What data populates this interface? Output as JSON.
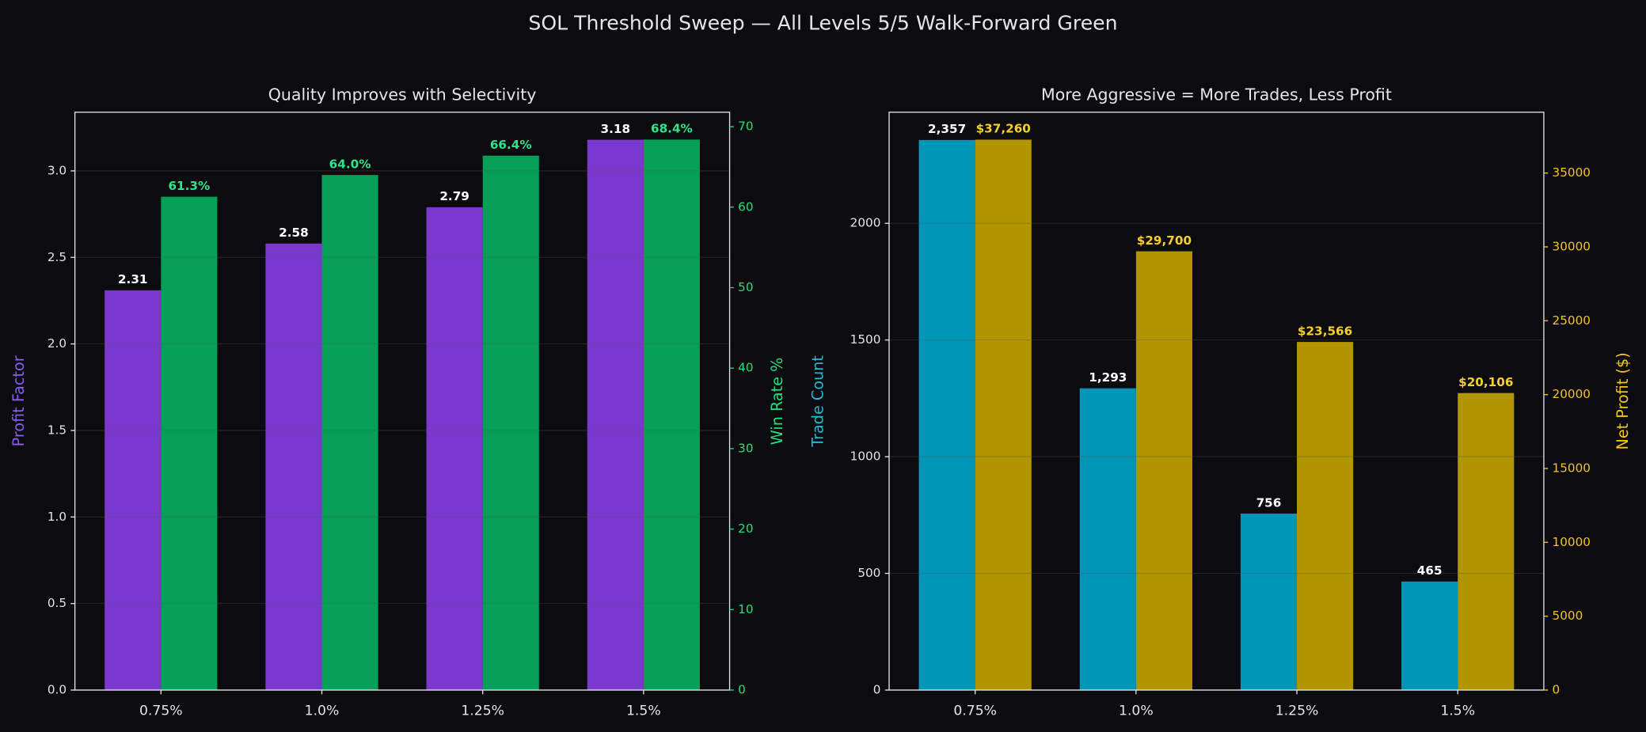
{
  "title": "SOL Threshold Sweep — All Levels 5/5 Walk-Forward Green",
  "chart_data": [
    {
      "type": "bar",
      "title": "Quality Improves with Selectivity",
      "categories": [
        "0.75%",
        "1.0%",
        "1.25%",
        "1.5%"
      ],
      "ylabel": "Profit Factor",
      "ylabel_color": "#8b5cf6",
      "y2label": "Win Rate %",
      "y2label_color": "#22e07a",
      "ylim": [
        0,
        3.339
      ],
      "yticks": [
        {
          "value": 0,
          "label": "0.0"
        },
        0.5,
        {
          "value": 1,
          "label": "1.0"
        },
        1.5,
        {
          "value": 2,
          "label": "2.0"
        },
        2.5,
        {
          "value": 3,
          "label": "3.0"
        }
      ],
      "y2lim": [
        0,
        71.8
      ],
      "y2ticks": [
        0,
        10,
        20,
        30,
        40,
        50,
        60,
        70
      ],
      "grid": true,
      "series": [
        {
          "color": "#7b38cf",
          "label_color": "#ffffff",
          "axis": "y",
          "values": [
            2.31,
            2.58,
            2.79,
            3.18
          ]
        },
        {
          "color": "#069f58",
          "label_color": "#2ee68a",
          "axis": "y2",
          "values": [
            61.3,
            64.0,
            66.4,
            68.4
          ],
          "value_labels": [
            "61.3%",
            "64.0%",
            "66.4%",
            "68.4%"
          ]
        }
      ]
    },
    {
      "type": "bar",
      "title": "More Aggressive = More Trades, Less Profit",
      "categories": [
        "0.75%",
        "1.0%",
        "1.25%",
        "1.5%"
      ],
      "ylabel": "Trade Count",
      "ylabel_color": "#22b8d8",
      "y2label": "Net Profit ($)",
      "y2label_color": "#f5c518",
      "ylim": [
        0,
        2476
      ],
      "yticks": [
        0,
        500,
        1000,
        1500,
        2000
      ],
      "y2lim": [
        0,
        39117
      ],
      "y2ticks": [
        0,
        5000,
        10000,
        15000,
        20000,
        25000,
        30000,
        35000
      ],
      "grid": true,
      "series": [
        {
          "color": "#0096b8",
          "label_color": "#ffffff",
          "axis": "y",
          "values": [
            2357,
            1293,
            756,
            465
          ],
          "value_labels": [
            "2,357",
            "1,293",
            "756",
            "465"
          ]
        },
        {
          "color": "#b39500",
          "label_color": "#f5cf2a",
          "axis": "y2",
          "values": [
            37260,
            29700,
            23566,
            20106
          ],
          "value_labels": [
            "$37,260",
            "$29,700",
            "$23,566",
            "$20,106"
          ]
        }
      ]
    }
  ]
}
